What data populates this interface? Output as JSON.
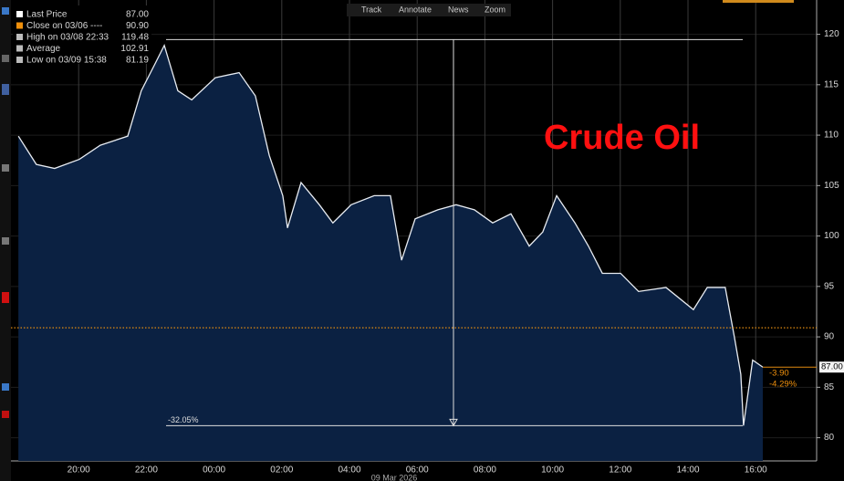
{
  "toolbar": [
    "Track",
    "Annotate",
    "News",
    "Zoom"
  ],
  "chart_data": {
    "type": "area",
    "title": "Crude Oil",
    "x_label": "09 Mar 2026",
    "x": [
      0.22,
      0.75,
      1.29,
      2.02,
      2.64,
      3.45,
      3.85,
      4.26,
      4.53,
      4.93,
      5.34,
      6.04,
      6.74,
      7.22,
      7.63,
      8.03,
      8.17,
      8.57,
      9.11,
      9.51,
      10.05,
      10.73,
      11.21,
      11.54,
      11.94,
      12.61,
      13.15,
      13.69,
      14.23,
      14.77,
      15.31,
      15.71,
      16.12,
      16.66,
      17.06,
      17.47,
      18.01,
      18.54,
      19.35,
      20.16,
      20.57,
      21.1,
      21.37,
      21.56,
      21.64,
      21.91,
      22.21
    ],
    "values": [
      109.9,
      107.1,
      106.7,
      107.6,
      109,
      109.9,
      114.4,
      117.1,
      118.9,
      114.4,
      113.5,
      115.7,
      116.2,
      113.9,
      108,
      104,
      100.8,
      105.3,
      103.1,
      101.3,
      103.1,
      104,
      104,
      97.6,
      101.7,
      102.6,
      103.1,
      102.6,
      101.3,
      102.2,
      99,
      100.4,
      104,
      101.3,
      99,
      96.3,
      96.3,
      94.5,
      94.9,
      92.7,
      94.9,
      94.9,
      90,
      86.3,
      81.2,
      87.7,
      87
    ],
    "color": "#0b2142",
    "line_color": "#e8ecf2",
    "xlim": [
      0,
      23.8
    ],
    "xticks": [
      {
        "value": 2,
        "label": "20:00"
      },
      {
        "value": 4,
        "label": "22:00"
      },
      {
        "value": 6,
        "label": "00:00"
      },
      {
        "value": 8,
        "label": "02:00"
      },
      {
        "value": 10,
        "label": "04:00"
      },
      {
        "value": 12,
        "label": "06:00"
      },
      {
        "value": 14,
        "label": "08:00"
      },
      {
        "value": 16,
        "label": "10:00"
      },
      {
        "value": 18,
        "label": "12:00"
      },
      {
        "value": 20,
        "label": "14:00"
      },
      {
        "value": 22,
        "label": "16:00"
      }
    ],
    "ylim": [
      77.7,
      123.4
    ],
    "yticks": [
      80,
      85,
      90,
      95,
      100,
      105,
      110,
      115,
      120
    ],
    "grid": true,
    "legend": {
      "names": [
        "Last Price",
        "Close on 03/06 ----",
        "High on 03/08 22:33",
        "Average",
        "Low on 03/09 15:38"
      ],
      "values": [
        87,
        90.9,
        119.48,
        102.91,
        81.19
      ],
      "value_labels": [
        "87.00",
        "90.90",
        "119.48",
        "102.91",
        "81.19"
      ]
    },
    "change": {
      "value": -3.9,
      "label": "-3.90"
    },
    "change_pct": {
      "value": -4.29,
      "label": "-4.29%"
    },
    "range_annotation": "-32.05%"
  }
}
